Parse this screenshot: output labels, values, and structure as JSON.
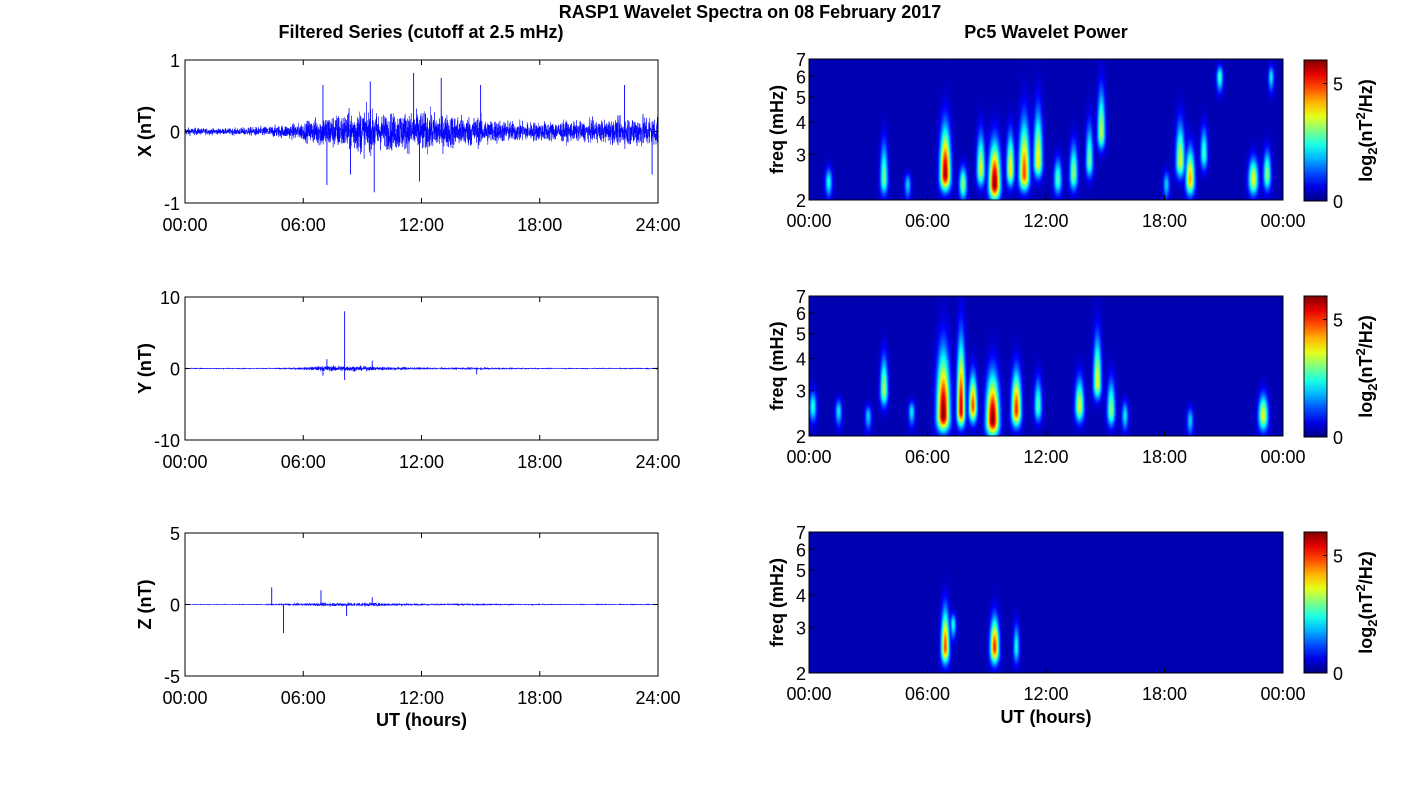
{
  "figure": {
    "title": "RASP1 Wavelet Spectra on 08 February 2017"
  },
  "colors": {
    "trace": "#0000ff",
    "spectrum_background": "#00008f",
    "colormap": "jet"
  },
  "chart_data": [
    {
      "type": "line",
      "panel": "filtered-x",
      "title": "Filtered Series (cutoff at 2.5 mHz)",
      "xlabel": "",
      "ylabel": "X (nT)",
      "xlim": [
        0,
        24
      ],
      "ylim": [
        -1,
        1
      ],
      "xticks": [
        "00:00",
        "06:00",
        "12:00",
        "18:00",
        "24:00"
      ],
      "yticks": [
        "-1",
        "0",
        "1"
      ],
      "series": [
        {
          "x_hours": [
            0,
            1,
            2,
            3,
            4,
            5,
            6,
            7,
            8,
            9,
            10,
            11,
            12,
            13,
            14,
            15,
            16,
            17,
            18,
            19,
            20,
            21,
            22,
            23,
            24
          ],
          "amplitude_nT": [
            0.12,
            0.1,
            0.09,
            0.12,
            0.16,
            0.2,
            0.28,
            0.5,
            0.55,
            0.7,
            0.55,
            0.6,
            0.62,
            0.55,
            0.5,
            0.45,
            0.35,
            0.3,
            0.3,
            0.32,
            0.3,
            0.35,
            0.4,
            0.5,
            0.5
          ]
        }
      ],
      "spikes": [
        {
          "x": 7.0,
          "y": 0.65
        },
        {
          "x": 7.2,
          "y": -0.75
        },
        {
          "x": 8.4,
          "y": -0.6
        },
        {
          "x": 9.4,
          "y": 0.7
        },
        {
          "x": 9.6,
          "y": -0.85
        },
        {
          "x": 11.6,
          "y": 0.82
        },
        {
          "x": 11.9,
          "y": -0.7
        },
        {
          "x": 13.0,
          "y": 0.75
        },
        {
          "x": 15.0,
          "y": 0.65
        },
        {
          "x": 22.3,
          "y": 0.65
        },
        {
          "x": 23.7,
          "y": -0.6
        }
      ]
    },
    {
      "type": "line",
      "panel": "filtered-y",
      "xlabel": "",
      "ylabel": "Y (nT)",
      "xlim": [
        0,
        24
      ],
      "ylim": [
        -10,
        10
      ],
      "xticks": [
        "00:00",
        "06:00",
        "12:00",
        "18:00",
        "24:00"
      ],
      "yticks": [
        "-10",
        "0",
        "10"
      ],
      "series": [
        {
          "x_hours": [
            0,
            1,
            2,
            3,
            4,
            5,
            6,
            7,
            8,
            9,
            10,
            11,
            12,
            13,
            14,
            15,
            16,
            17,
            18,
            19,
            20,
            21,
            22,
            23,
            24
          ],
          "amplitude_nT": [
            0.2,
            0.2,
            0.2,
            0.2,
            0.2,
            0.25,
            0.4,
            0.8,
            0.9,
            0.7,
            0.6,
            0.5,
            0.35,
            0.3,
            0.35,
            0.4,
            0.3,
            0.25,
            0.25,
            0.2,
            0.2,
            0.2,
            0.2,
            0.25,
            0.25
          ]
        }
      ],
      "spikes": [
        {
          "x": 7.2,
          "y": 1.3
        },
        {
          "x": 7.0,
          "y": -1.0
        },
        {
          "x": 8.1,
          "y": 8.0
        },
        {
          "x": 8.1,
          "y": -1.6
        },
        {
          "x": 9.5,
          "y": 1.1
        },
        {
          "x": 14.8,
          "y": -0.8
        }
      ]
    },
    {
      "type": "line",
      "panel": "filtered-z",
      "xlabel": "UT (hours)",
      "ylabel": "Z (nT)",
      "xlim": [
        0,
        24
      ],
      "ylim": [
        -5,
        5
      ],
      "xticks": [
        "00:00",
        "06:00",
        "12:00",
        "18:00",
        "24:00"
      ],
      "yticks": [
        "-5",
        "0",
        "5"
      ],
      "series": [
        {
          "x_hours": [
            0,
            1,
            2,
            3,
            4,
            5,
            6,
            7,
            8,
            9,
            10,
            11,
            12,
            13,
            14,
            15,
            16,
            17,
            18,
            19,
            20,
            21,
            22,
            23,
            24
          ],
          "amplitude_nT": [
            0.08,
            0.08,
            0.08,
            0.08,
            0.1,
            0.15,
            0.2,
            0.25,
            0.3,
            0.3,
            0.25,
            0.2,
            0.15,
            0.15,
            0.15,
            0.15,
            0.12,
            0.12,
            0.1,
            0.1,
            0.1,
            0.1,
            0.1,
            0.1,
            0.1
          ]
        }
      ],
      "spikes": [
        {
          "x": 4.4,
          "y": 1.2
        },
        {
          "x": 5.0,
          "y": -2.0
        },
        {
          "x": 6.9,
          "y": 1.0
        },
        {
          "x": 8.2,
          "y": -0.8
        },
        {
          "x": 9.5,
          "y": 0.5
        }
      ]
    },
    {
      "type": "heatmap",
      "panel": "wavelet-x",
      "title": "Pc5 Wavelet Power",
      "xlabel": "",
      "ylabel": "freq (mHz)",
      "xlim": [
        0,
        24
      ],
      "ylim": [
        2,
        7
      ],
      "yscale": "log",
      "xticks": [
        "00:00",
        "06:00",
        "12:00",
        "18:00",
        "00:00"
      ],
      "yticks": [
        "2",
        "3",
        "4",
        "5",
        "6",
        "7"
      ],
      "colorbar_label": "log2(nT2/Hz)",
      "colorbar_label_parts": {
        "prefix": "log",
        "sub": "2",
        "mid": "(nT",
        "sup": "2",
        "suffix": "/Hz)"
      },
      "colorbar_ticks": [
        "0",
        "5"
      ],
      "clim": [
        0,
        6
      ],
      "blobs": [
        {
          "t": 1.0,
          "f": 2.35,
          "p": 2.2,
          "w": 0.13,
          "top": 2.9
        },
        {
          "t": 3.8,
          "f": 2.4,
          "p": 2.8,
          "w": 0.15,
          "top": 4.2
        },
        {
          "t": 5.0,
          "f": 2.3,
          "p": 1.8,
          "w": 0.12,
          "top": 2.7
        },
        {
          "t": 6.9,
          "f": 2.5,
          "p": 5.8,
          "w": 0.22,
          "top": 5.0
        },
        {
          "t": 7.8,
          "f": 2.3,
          "p": 3.0,
          "w": 0.15,
          "top": 3.0
        },
        {
          "t": 8.7,
          "f": 2.6,
          "p": 3.5,
          "w": 0.16,
          "top": 4.5
        },
        {
          "t": 9.4,
          "f": 2.3,
          "p": 6.0,
          "w": 0.24,
          "top": 4.2
        },
        {
          "t": 10.2,
          "f": 2.6,
          "p": 3.8,
          "w": 0.15,
          "top": 4.5
        },
        {
          "t": 10.9,
          "f": 2.5,
          "p": 4.8,
          "w": 0.22,
          "top": 5.5
        },
        {
          "t": 11.6,
          "f": 2.8,
          "p": 3.8,
          "w": 0.18,
          "top": 6.0
        },
        {
          "t": 12.6,
          "f": 2.4,
          "p": 2.6,
          "w": 0.16,
          "top": 3.3
        },
        {
          "t": 13.4,
          "f": 2.5,
          "p": 3.0,
          "w": 0.16,
          "top": 4.0
        },
        {
          "t": 14.2,
          "f": 2.8,
          "p": 2.8,
          "w": 0.14,
          "top": 5.0
        },
        {
          "t": 14.8,
          "f": 3.6,
          "p": 3.3,
          "w": 0.15,
          "top": 7.0
        },
        {
          "t": 18.1,
          "f": 2.3,
          "p": 1.8,
          "w": 0.12,
          "top": 2.8
        },
        {
          "t": 18.8,
          "f": 2.8,
          "p": 3.5,
          "w": 0.18,
          "top": 5.0
        },
        {
          "t": 19.3,
          "f": 2.4,
          "p": 4.2,
          "w": 0.18,
          "top": 3.8
        },
        {
          "t": 20.0,
          "f": 3.0,
          "p": 2.5,
          "w": 0.14,
          "top": 4.5
        },
        {
          "t": 20.8,
          "f": 6.0,
          "p": 2.5,
          "w": 0.12,
          "top": 7.0
        },
        {
          "t": 22.5,
          "f": 2.4,
          "p": 3.6,
          "w": 0.2,
          "top": 3.3
        },
        {
          "t": 23.2,
          "f": 2.5,
          "p": 3.0,
          "w": 0.15,
          "top": 3.6
        },
        {
          "t": 23.4,
          "f": 6.0,
          "p": 2.0,
          "w": 0.1,
          "top": 7.0
        }
      ]
    },
    {
      "type": "heatmap",
      "panel": "wavelet-y",
      "xlabel": "",
      "ylabel": "freq (mHz)",
      "xlim": [
        0,
        24
      ],
      "ylim": [
        2,
        7
      ],
      "yscale": "log",
      "xticks": [
        "00:00",
        "06:00",
        "12:00",
        "18:00",
        "00:00"
      ],
      "yticks": [
        "2",
        "3",
        "4",
        "5",
        "6",
        "7"
      ],
      "colorbar_label": "log2(nT2/Hz)",
      "colorbar_label_parts": {
        "prefix": "log",
        "sub": "2",
        "mid": "(nT",
        "sup": "2",
        "suffix": "/Hz)"
      },
      "colorbar_ticks": [
        "0",
        "5"
      ],
      "clim": [
        0,
        6
      ],
      "blobs": [
        {
          "t": 0.2,
          "f": 2.6,
          "p": 2.3,
          "w": 0.14,
          "top": 3.3
        },
        {
          "t": 1.5,
          "f": 2.5,
          "p": 2.0,
          "w": 0.12,
          "top": 3.0
        },
        {
          "t": 3.0,
          "f": 2.4,
          "p": 1.8,
          "w": 0.12,
          "top": 2.8
        },
        {
          "t": 3.8,
          "f": 3.0,
          "p": 3.2,
          "w": 0.15,
          "top": 5.0
        },
        {
          "t": 5.2,
          "f": 2.5,
          "p": 2.0,
          "w": 0.12,
          "top": 2.8
        },
        {
          "t": 6.8,
          "f": 2.4,
          "p": 6.0,
          "w": 0.28,
          "top": 6.0
        },
        {
          "t": 7.7,
          "f": 2.5,
          "p": 5.5,
          "w": 0.16,
          "top": 7.0
        },
        {
          "t": 8.3,
          "f": 2.6,
          "p": 4.8,
          "w": 0.16,
          "top": 4.2
        },
        {
          "t": 9.3,
          "f": 2.3,
          "p": 6.0,
          "w": 0.28,
          "top": 4.5
        },
        {
          "t": 10.5,
          "f": 2.5,
          "p": 5.0,
          "w": 0.2,
          "top": 4.5
        },
        {
          "t": 11.6,
          "f": 2.6,
          "p": 2.6,
          "w": 0.15,
          "top": 4.0
        },
        {
          "t": 13.7,
          "f": 2.6,
          "p": 3.5,
          "w": 0.18,
          "top": 4.0
        },
        {
          "t": 14.6,
          "f": 3.2,
          "p": 3.6,
          "w": 0.16,
          "top": 6.5
        },
        {
          "t": 15.3,
          "f": 2.5,
          "p": 3.0,
          "w": 0.16,
          "top": 4.0
        },
        {
          "t": 16.0,
          "f": 2.4,
          "p": 2.0,
          "w": 0.12,
          "top": 3.0
        },
        {
          "t": 19.3,
          "f": 2.3,
          "p": 1.8,
          "w": 0.12,
          "top": 2.8
        },
        {
          "t": 23.0,
          "f": 2.4,
          "p": 3.6,
          "w": 0.2,
          "top": 3.3
        }
      ]
    },
    {
      "type": "heatmap",
      "panel": "wavelet-z",
      "xlabel": "UT (hours)",
      "ylabel": "freq (mHz)",
      "xlim": [
        0,
        24
      ],
      "ylim": [
        2,
        7
      ],
      "yscale": "log",
      "xticks": [
        "00:00",
        "06:00",
        "12:00",
        "18:00",
        "00:00"
      ],
      "yticks": [
        "2",
        "3",
        "4",
        "5",
        "6",
        "7"
      ],
      "colorbar_label": "log2(nT2/Hz)",
      "colorbar_label_parts": {
        "prefix": "log",
        "sub": "2",
        "mid": "(nT",
        "sup": "2",
        "suffix": "/Hz)"
      },
      "colorbar_ticks": [
        "0",
        "5"
      ],
      "clim": [
        0,
        6
      ],
      "blobs": [
        {
          "t": 6.9,
          "f": 2.5,
          "p": 4.8,
          "w": 0.16,
          "top": 4.4
        },
        {
          "t": 7.3,
          "f": 3.1,
          "p": 2.2,
          "w": 0.1,
          "top": 3.6
        },
        {
          "t": 9.4,
          "f": 2.5,
          "p": 5.0,
          "w": 0.18,
          "top": 3.9
        },
        {
          "t": 10.5,
          "f": 2.5,
          "p": 2.2,
          "w": 0.11,
          "top": 3.6
        }
      ]
    }
  ]
}
